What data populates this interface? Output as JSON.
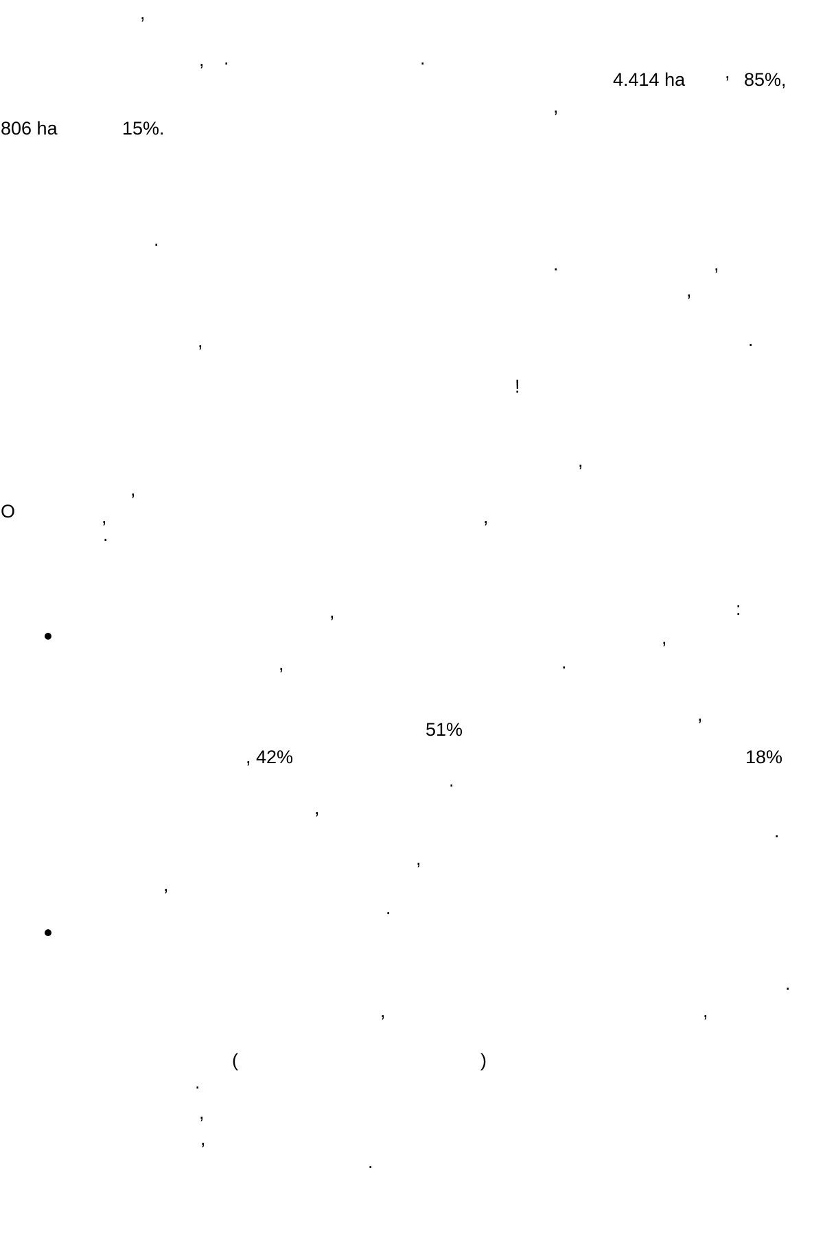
{
  "page": {
    "background": "#ffffff",
    "text_color": "#000000"
  },
  "fragments": {
    "l1_comma": ",",
    "l2_comma": ",",
    "l2_dot_a": ".",
    "l2_dot_b": ".",
    "l3_area_a": "4.414 ha",
    "l3_comma": ",",
    "l3_pct_a": "85%,",
    "l4_comma": ",",
    "l5_area_b": "806 ha",
    "l5_pct_b": "15%.",
    "p2_dot_a": ".",
    "p2_dot_b": ".",
    "p2_comma_a": ",",
    "p2_comma_b": ",",
    "p2_comma_c": ",",
    "p2_dot_c": ".",
    "p2_exclaim": "!",
    "p3_comma_a": ",",
    "p3_comma_b": ",",
    "p3_o": "O",
    "p3_comma_c": ",",
    "p3_comma_d": ",",
    "p3_dot": ".",
    "b1_comma_a": ",",
    "b1_colon": ":",
    "b1_comma_b": ",",
    "b1_comma_c": ",",
    "b1_dot": ".",
    "b1_comma_d": ",",
    "b1_pct_51": "51%",
    "b1_pct_42": ", 42%",
    "b1_pct_18": "18%",
    "b1_dot_b": ".",
    "b1_comma_e": ",",
    "b1_dot_c": ".",
    "b1_comma_f": ",",
    "b1_comma_g": ",",
    "b1_dot_d": ".",
    "b2_dot_a": ".",
    "b2_comma_a": ",",
    "b2_comma_b": ",",
    "b2_paren_open": "(",
    "b2_paren_close": ")",
    "b2_dot_b": ".",
    "b2_comma_c": ",",
    "b2_comma_d": ",",
    "b2_dot_c": "."
  }
}
